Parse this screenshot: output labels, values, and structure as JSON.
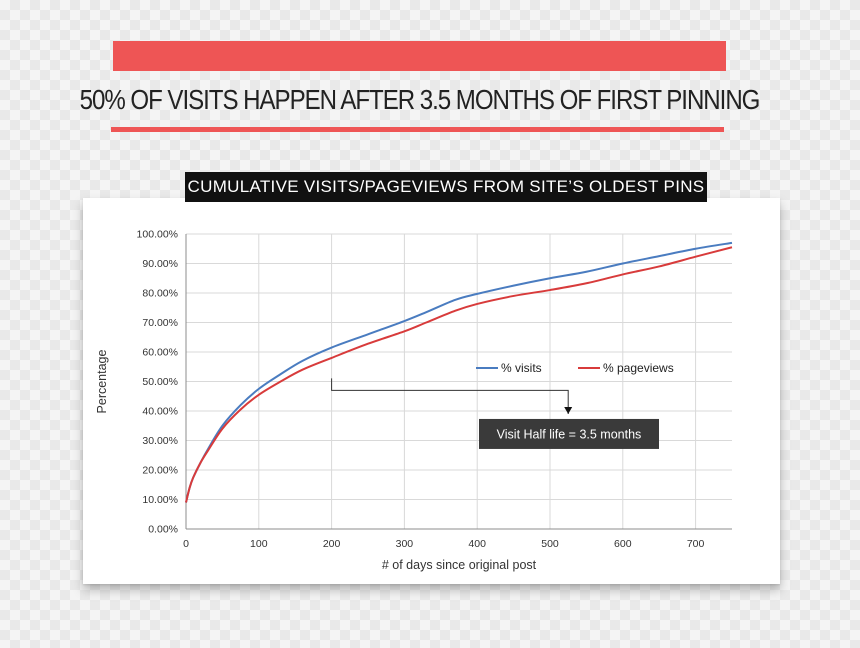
{
  "headline": "50% OF VISITS HAPPEN AFTER 3.5 MONTHS OF FIRST PINNING",
  "colors": {
    "accent_red": "#ee5555",
    "banner_black": "#111111",
    "series_visits": "#4a7cc0",
    "series_pageviews": "#d83b3b",
    "grid": "#d9d9d9",
    "annotation_box": "#3a3a3a"
  },
  "chart_data": {
    "type": "line",
    "title": "CUMULATIVE VISITS/PAGEVIEWS FROM SITE’S OLDEST PINS",
    "xlabel": "# of days since original post",
    "ylabel": "Percentage",
    "xlim": [
      0,
      750
    ],
    "ylim": [
      0,
      100
    ],
    "x_ticks": [
      0,
      100,
      200,
      300,
      400,
      500,
      600,
      700
    ],
    "y_ticks": [
      0,
      10,
      20,
      30,
      40,
      50,
      60,
      70,
      80,
      90,
      100
    ],
    "y_tick_labels": [
      "0.00%",
      "10.00%",
      "20.00%",
      "30.00%",
      "40.00%",
      "50.00%",
      "60.00%",
      "70.00%",
      "80.00%",
      "90.00%",
      "100.00%"
    ],
    "grid": true,
    "legend": "center-right",
    "series": [
      {
        "name": "% visits",
        "color": "#4a7cc0",
        "x": [
          0,
          5,
          10,
          20,
          30,
          50,
          75,
          100,
          130,
          160,
          200,
          250,
          300,
          330,
          370,
          400,
          450,
          500,
          550,
          600,
          650,
          700,
          750
        ],
        "y": [
          9,
          14,
          17.5,
          22.5,
          27,
          35,
          42,
          47.5,
          52.5,
          57,
          61.5,
          66,
          70.5,
          73.5,
          77.7,
          79.7,
          82.5,
          85,
          87.2,
          90,
          92.5,
          95,
          97
        ]
      },
      {
        "name": "% pageviews",
        "color": "#d83b3b",
        "x": [
          0,
          5,
          10,
          20,
          30,
          50,
          75,
          100,
          130,
          160,
          200,
          250,
          300,
          330,
          370,
          400,
          450,
          500,
          550,
          600,
          650,
          700,
          750
        ],
        "y": [
          9,
          14,
          17.5,
          22.5,
          26.5,
          34,
          40.5,
          45.5,
          50,
          54,
          58,
          62.8,
          67,
          70,
          74,
          76.3,
          79,
          81,
          83.3,
          86.3,
          89,
          92.3,
          95.5
        ]
      }
    ],
    "annotation": {
      "text": "Visit Half life = 3.5 months",
      "from_point": {
        "x": 200,
        "y": 47
      },
      "to_point": {
        "x": 525,
        "y": 39
      }
    }
  }
}
